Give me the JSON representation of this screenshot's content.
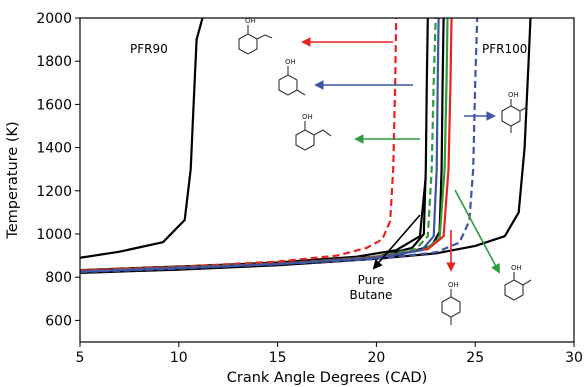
{
  "chart_data": {
    "type": "line",
    "title": "",
    "xlabel": "Crank Angle Degrees (CAD)",
    "ylabel": "Temperature (K)",
    "xlim": [
      5,
      30
    ],
    "ylim": [
      500,
      2000
    ],
    "xticks": [
      5,
      10,
      15,
      20,
      25,
      30
    ],
    "yticks": [
      600,
      800,
      1000,
      1200,
      1400,
      1600,
      1800,
      2000
    ],
    "grid": false,
    "series": [
      {
        "color": "#000000",
        "dash": "solid",
        "x": [
          5.0,
          7.0,
          9.2,
          10.3,
          10.6,
          10.75,
          10.9,
          11.2
        ],
        "y": [
          890,
          918,
          962,
          1065,
          1300,
          1600,
          1900,
          2000
        ]
      },
      {
        "color": "#000000",
        "dash": "solid",
        "x": [
          5.0,
          10,
          15,
          20,
          23,
          25,
          26.5,
          27.2,
          27.5,
          27.7,
          27.8
        ],
        "y": [
          820,
          835,
          855,
          885,
          910,
          945,
          990,
          1100,
          1400,
          1800,
          2000
        ]
      },
      {
        "color": "#000000",
        "dash": "solid",
        "x": [
          5.0,
          10,
          15,
          19,
          21,
          22.2,
          22.5
        ],
        "y": [
          832,
          848,
          868,
          895,
          925,
          990,
          1265
        ]
      },
      {
        "color": "#000000",
        "dash": "solid",
        "x": [
          5.0,
          15,
          20,
          21.8,
          22.4,
          22.5,
          22.55,
          22.6
        ],
        "y": [
          833,
          866,
          895,
          935,
          1000,
          1300,
          1700,
          2000
        ]
      },
      {
        "color": "#000000",
        "dash": "solid",
        "x": [
          5.0,
          15,
          21,
          22.8,
          23.2,
          23.3,
          23.35,
          23.4
        ],
        "y": [
          831,
          864,
          900,
          945,
          1010,
          1300,
          1700,
          2000
        ]
      },
      {
        "color": "#e8221e",
        "dash": "dashed",
        "x": [
          5.0,
          10,
          15,
          18,
          19.5,
          20.3,
          20.7,
          20.85,
          20.95,
          21.0
        ],
        "y": [
          832,
          848,
          872,
          900,
          935,
          975,
          1060,
          1300,
          1700,
          2000
        ]
      },
      {
        "color": "#2e9b3c",
        "dash": "dashed",
        "x": [
          5.0,
          15,
          20,
          22,
          22.6,
          22.8,
          22.9,
          23.0
        ],
        "y": [
          830,
          862,
          895,
          930,
          990,
          1300,
          1700,
          2000
        ]
      },
      {
        "color": "#2e9b3c",
        "dash": "solid",
        "x": [
          5.0,
          15,
          20,
          22.5,
          23.2,
          23.45,
          23.55,
          23.6
        ],
        "y": [
          830,
          862,
          893,
          930,
          980,
          1300,
          1700,
          2000
        ]
      },
      {
        "color": "#e8221e",
        "dash": "solid",
        "x": [
          5.0,
          15,
          20,
          22.6,
          23.4,
          23.65,
          23.75,
          23.8
        ],
        "y": [
          829,
          861,
          892,
          930,
          990,
          1300,
          1700,
          2000
        ]
      },
      {
        "color": "#3d55a6",
        "dash": "solid",
        "x": [
          5.0,
          15,
          20,
          22.3,
          22.9,
          23.05,
          23.1,
          23.15
        ],
        "y": [
          826,
          860,
          890,
          925,
          990,
          1300,
          1700,
          2000
        ]
      },
      {
        "color": "#3d55a6",
        "dash": "dashed",
        "x": [
          5.0,
          10,
          15,
          20,
          23,
          24.2,
          24.7,
          24.9,
          25.0,
          25.1
        ],
        "y": [
          824,
          840,
          860,
          885,
          915,
          960,
          1060,
          1300,
          1700,
          2000
        ]
      }
    ],
    "annotations": [
      {
        "text": "PFR90"
      },
      {
        "text": "PFR100"
      },
      {
        "text": "Pure"
      },
      {
        "text": "Butane"
      },
      {
        "text": "OH"
      }
    ]
  }
}
